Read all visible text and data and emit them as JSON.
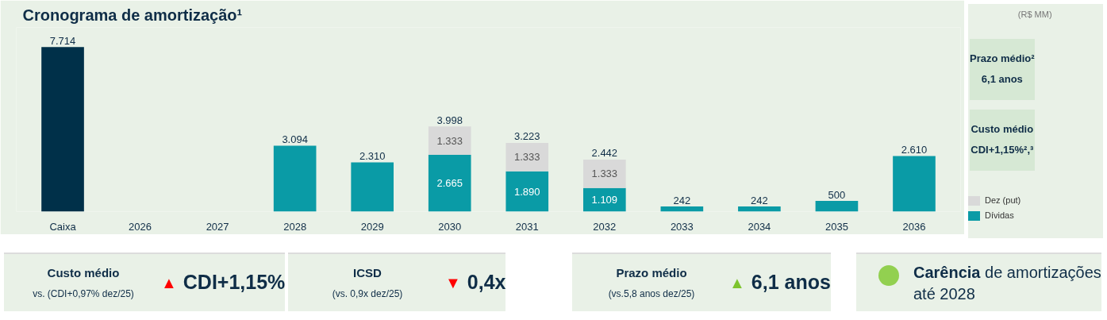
{
  "chart_data": [
    {
      "type": "bar",
      "title": "Cronograma de amortização¹",
      "stacked": true,
      "legend": "right",
      "categories": [
        "Caixa",
        "2026",
        "2027",
        "2028",
        "2029",
        "2030",
        "2031",
        "2032",
        "2033",
        "2034",
        "2035",
        "2036"
      ],
      "series": [
        {
          "name": "Dívidas",
          "color": "#0a9ba6",
          "colors": [
            "#003049",
            "#0a9ba6",
            "#0a9ba6",
            "#0a9ba6",
            "#0a9ba6",
            "#0a9ba6",
            "#0a9ba6",
            "#0a9ba6",
            "#0a9ba6",
            "#0a9ba6",
            "#0a9ba6",
            "#0a9ba6"
          ],
          "values": [
            7714,
            null,
            null,
            3094,
            2310,
            2665,
            1890,
            1109,
            242,
            242,
            500,
            2610
          ],
          "value_labels": [
            "7.714",
            null,
            null,
            "3.094",
            "2.310",
            "2.665",
            "1.890",
            "1.109",
            "242",
            "242",
            "500",
            "2.610"
          ]
        },
        {
          "name": "Dez (put)",
          "color": "#d9d9d9",
          "values": [
            null,
            null,
            null,
            null,
            null,
            1333,
            1333,
            1333,
            null,
            null,
            null,
            null
          ],
          "value_labels": [
            null,
            null,
            null,
            null,
            null,
            "1.333",
            "1.333",
            "1.333",
            null,
            null,
            null,
            null
          ]
        }
      ],
      "totals": [
        null,
        null,
        null,
        null,
        null,
        "3.998",
        "3.223",
        "2.442",
        null,
        null,
        null,
        null
      ],
      "annotations": [
        "(R$ MM)",
        "Prazo médio²",
        "6,1 anos",
        "Custo médio",
        "CDI+1,15%²,³"
      ]
    },
    {
      "type": "other",
      "title": "Custo médio",
      "subtitle": "vs. (CDI+0,97% dez/25)",
      "color": "#ff0000",
      "annotations": [
        "▲",
        "CDI+1,15%"
      ]
    },
    {
      "type": "other",
      "title": "ICSD",
      "subtitle": "(vs. 0,9x dez/25)",
      "color": "#ff0000",
      "annotations": [
        "▼",
        "0,4x"
      ]
    },
    {
      "type": "other",
      "title": "Prazo médio",
      "subtitle": "(vs.5,8 anos dez/25)",
      "color": "#7dc42e",
      "annotations": [
        "▲",
        "6,1 anos"
      ]
    },
    {
      "type": "other",
      "color": "#92d050",
      "annotations": [
        "Carência",
        "de amortizações",
        "até 2028"
      ]
    }
  ]
}
